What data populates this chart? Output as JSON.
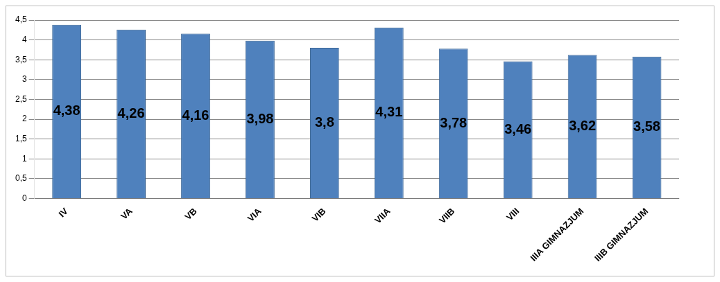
{
  "chart_data": {
    "type": "bar",
    "categories": [
      "IV",
      "VA",
      "VB",
      "VIA",
      "VIB",
      "VIIA",
      "VIIB",
      "VIII",
      "IIIA GIMNAZJUM",
      "IIIB GIMNAZJUM"
    ],
    "values": [
      4.38,
      4.26,
      4.16,
      3.98,
      3.8,
      4.31,
      3.78,
      3.46,
      3.62,
      3.58
    ],
    "value_labels": [
      "4,38",
      "4,26",
      "4,16",
      "3,98",
      "3,8",
      "4,31",
      "3,78",
      "3,46",
      "3,62",
      "3,58"
    ],
    "color": "#4f81bd",
    "ylim": [
      0,
      4.5
    ],
    "yticks": [
      0,
      {
        "value": 0.5,
        "label": "0,5"
      },
      1,
      {
        "value": 1.5,
        "label": "1,5"
      },
      2,
      {
        "value": 2.5,
        "label": "2,5"
      },
      3,
      {
        "value": 3.5,
        "label": "3,5"
      },
      4,
      {
        "value": 4.5,
        "label": "4,5"
      }
    ],
    "grid": "y",
    "legend": false
  }
}
